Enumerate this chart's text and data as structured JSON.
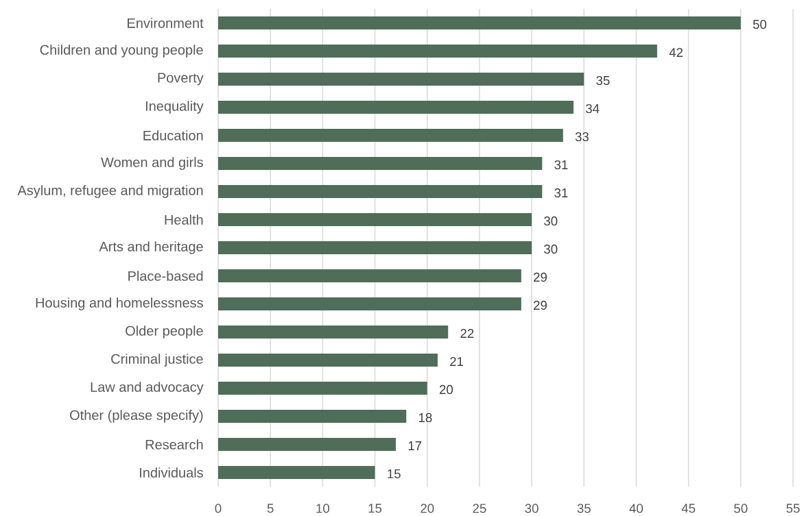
{
  "chart_data": {
    "type": "bar",
    "orientation": "horizontal",
    "categories": [
      "Environment",
      "Children and young people",
      "Poverty",
      "Inequality",
      "Education",
      "Women and girls",
      "Asylum, refugee and migration",
      "Health",
      "Arts and heritage",
      "Place-based",
      "Housing and homelessness",
      "Older people",
      "Criminal justice",
      "Law and advocacy",
      "Other (please specify)",
      "Research",
      "Individuals"
    ],
    "values": [
      50,
      42,
      35,
      34,
      33,
      31,
      31,
      30,
      30,
      29,
      29,
      22,
      21,
      20,
      18,
      17,
      15
    ],
    "color": "#4f6d59",
    "xlim": [
      0,
      55
    ],
    "xticks": [
      0,
      5,
      10,
      15,
      20,
      25,
      30,
      35,
      40,
      45,
      50,
      55
    ],
    "grid": "x",
    "data_labels": true
  }
}
